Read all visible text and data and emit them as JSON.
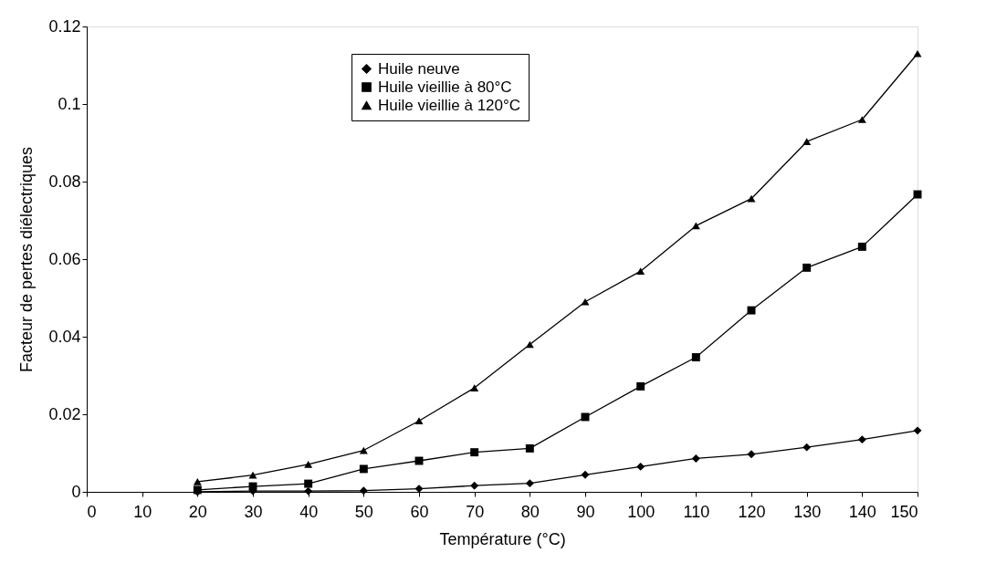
{
  "chart_data": {
    "type": "line",
    "xlabel": "Température (°C)",
    "ylabel": "Facteur de pertes diélectriques",
    "x": [
      20,
      30,
      40,
      50,
      60,
      70,
      80,
      90,
      100,
      110,
      120,
      130,
      140,
      150
    ],
    "series": [
      {
        "name": "Huile neuve",
        "color": "#000000",
        "marker": "diamond",
        "values": [
          0.0,
          0.0002,
          0.0002,
          0.0003,
          0.0008,
          0.0016,
          0.0022,
          0.0044,
          0.0065,
          0.0086,
          0.0097,
          0.0115,
          0.0135,
          0.0158
        ]
      },
      {
        "name": "Huile vieillie à 80°C",
        "color": "#000000",
        "marker": "square",
        "values": [
          0.0005,
          0.0014,
          0.0021,
          0.0059,
          0.008,
          0.0102,
          0.0112,
          0.0193,
          0.0272,
          0.0347,
          0.0468,
          0.0578,
          0.0632,
          0.0767
        ]
      },
      {
        "name": "Huile vieillie à 120°C",
        "color": "#000000",
        "marker": "triangle",
        "values": [
          0.0026,
          0.0043,
          0.0071,
          0.0107,
          0.0183,
          0.0268,
          0.038,
          0.049,
          0.0569,
          0.0686,
          0.0756,
          0.0903,
          0.096,
          0.113
        ]
      }
    ],
    "xlim": [
      0,
      150
    ],
    "xticks": [
      0,
      10,
      20,
      30,
      40,
      50,
      60,
      70,
      80,
      90,
      100,
      110,
      120,
      130,
      140,
      150
    ],
    "ylim": [
      0,
      0.12
    ],
    "yticks": [
      0,
      0.02,
      0.04,
      0.06,
      0.08,
      0.1,
      0.12
    ],
    "grid": false,
    "legend": "top",
    "line_style": "solid"
  }
}
